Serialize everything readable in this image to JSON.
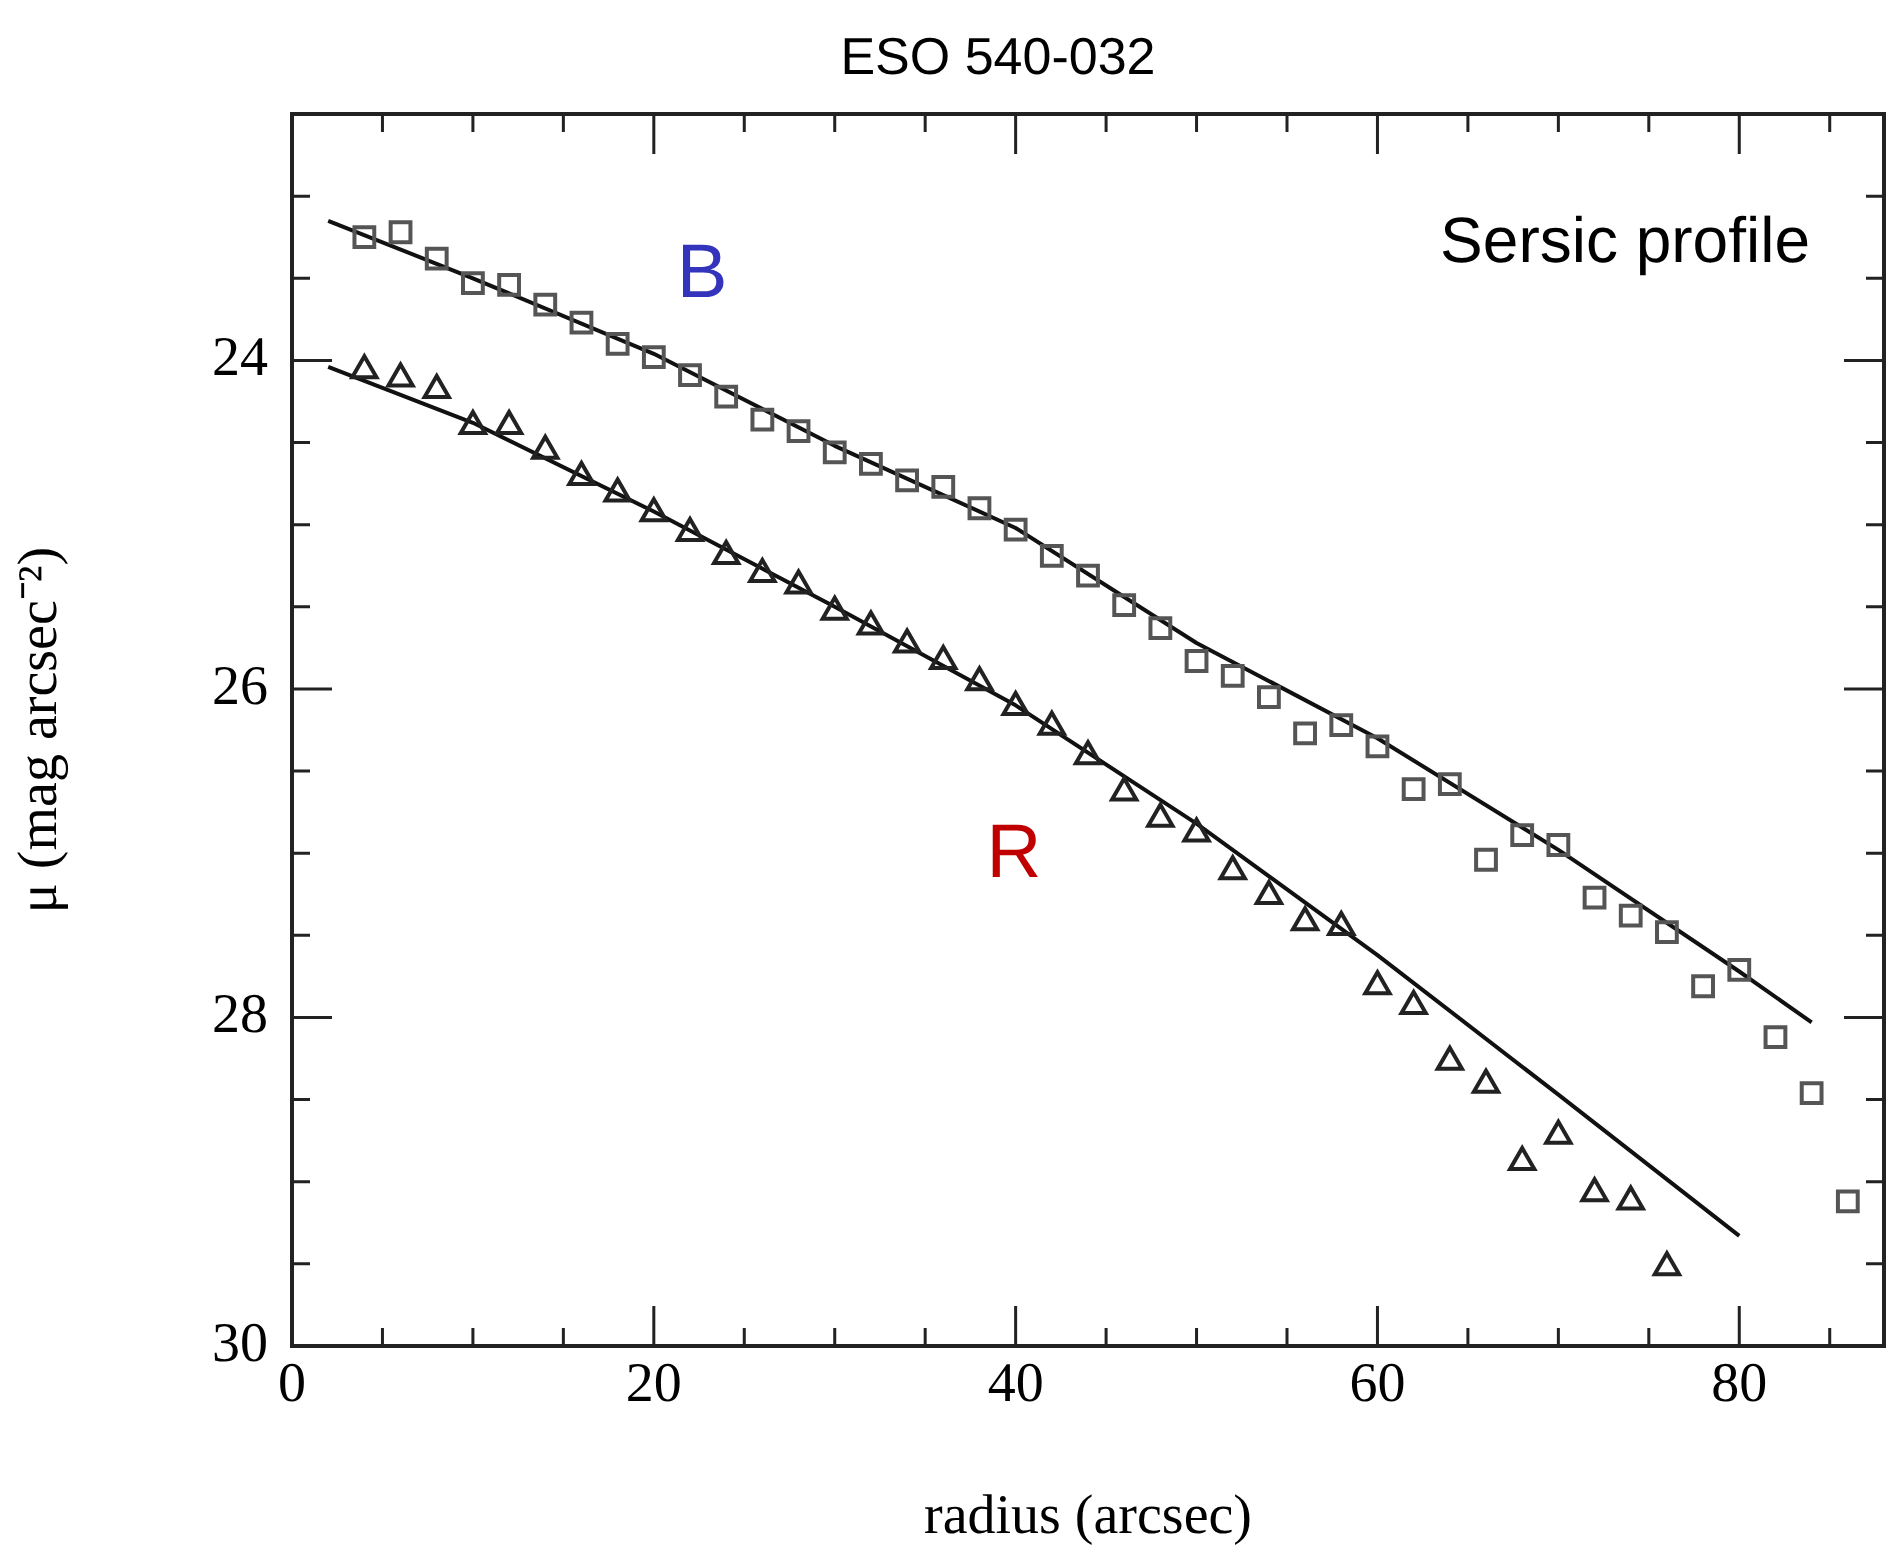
{
  "chart_data": {
    "type": "scatter",
    "title": "ESO 540-032",
    "xlabel": "radius (arcsec)",
    "ylabel": "μ (mag arcsec⁻²)",
    "xlim": [
      0,
      88
    ],
    "ylim": [
      30,
      22.5
    ],
    "xticks": [
      0,
      {
        "value": 5,
        "label": null
      },
      {
        "value": 10,
        "label": null
      },
      {
        "value": 15,
        "label": null
      },
      20,
      {
        "value": 25,
        "label": null
      },
      {
        "value": 30,
        "label": null
      },
      {
        "value": 35,
        "label": null
      },
      40,
      {
        "value": 45,
        "label": null
      },
      {
        "value": 50,
        "label": null
      },
      {
        "value": 55,
        "label": null
      },
      60,
      {
        "value": 65,
        "label": null
      },
      {
        "value": 70,
        "label": null
      },
      {
        "value": 75,
        "label": null
      },
      80,
      {
        "value": 85,
        "label": null
      }
    ],
    "yticks": [
      {
        "value": 22.5,
        "label": null
      },
      {
        "value": 23,
        "label": null
      },
      {
        "value": 23.5,
        "label": null
      },
      24,
      {
        "value": 24.5,
        "label": null
      },
      {
        "value": 25,
        "label": null
      },
      {
        "value": 25.5,
        "label": null
      },
      26,
      {
        "value": 26.5,
        "label": null
      },
      {
        "value": 27,
        "label": null
      },
      {
        "value": 27.5,
        "label": null
      },
      28,
      {
        "value": 28.5,
        "label": null
      },
      {
        "value": 29,
        "label": null
      },
      {
        "value": 29.5,
        "label": null
      },
      30
    ],
    "grid": false,
    "legend": false,
    "annotations": [
      "Sersic profile",
      "B",
      "R"
    ],
    "series": [
      {
        "marker": "square",
        "color": "#555555",
        "x": [
          4,
          6,
          8,
          10,
          12,
          14,
          16,
          18,
          20,
          22,
          24,
          26,
          28,
          30,
          32,
          34,
          36,
          38,
          40,
          42,
          44,
          46,
          48,
          50,
          52,
          54,
          56,
          58,
          60,
          62,
          64,
          66,
          68,
          70,
          72,
          74,
          76,
          78,
          80,
          82,
          84,
          86
        ],
        "values": [
          23.25,
          23.22,
          23.38,
          23.53,
          23.54,
          23.66,
          23.77,
          23.9,
          23.98,
          24.09,
          24.22,
          24.36,
          24.43,
          24.56,
          24.63,
          24.73,
          24.77,
          24.9,
          25.03,
          25.19,
          25.31,
          25.49,
          25.63,
          25.83,
          25.92,
          26.05,
          26.27,
          26.22,
          26.35,
          26.61,
          26.58,
          27.04,
          26.89,
          26.95,
          27.27,
          27.38,
          27.48,
          27.81,
          27.71,
          28.12,
          28.46,
          29.12
        ]
      },
      {
        "marker": "triangle",
        "color": "#222222",
        "x": [
          4,
          6,
          8,
          10,
          12,
          14,
          16,
          18,
          20,
          22,
          24,
          26,
          28,
          30,
          32,
          34,
          36,
          38,
          40,
          42,
          44,
          46,
          48,
          50,
          52,
          54,
          56,
          58,
          60,
          62,
          64,
          66,
          68,
          70,
          72,
          74,
          76
        ],
        "values": [
          24.06,
          24.11,
          24.18,
          24.4,
          24.4,
          24.55,
          24.71,
          24.81,
          24.93,
          25.05,
          25.19,
          25.3,
          25.37,
          25.53,
          25.62,
          25.73,
          25.83,
          25.96,
          26.11,
          26.23,
          26.41,
          26.63,
          26.79,
          26.88,
          27.11,
          27.26,
          27.42,
          27.45,
          27.81,
          27.93,
          28.27,
          28.41,
          28.88,
          28.72,
          29.07,
          29.12,
          29.52
        ]
      },
      {
        "type": "line",
        "marker": "none",
        "color": "#111111",
        "x": [
          2,
          10,
          20,
          30,
          40,
          50,
          60,
          70,
          80,
          84
        ],
        "values": [
          23.15,
          23.5,
          23.96,
          24.52,
          25.02,
          25.72,
          26.3,
          26.98,
          27.72,
          28.03
        ]
      },
      {
        "type": "line",
        "marker": "none",
        "color": "#111111",
        "x": [
          2,
          10,
          20,
          30,
          40,
          50,
          60,
          70,
          80
        ],
        "values": [
          24.04,
          24.38,
          24.92,
          25.5,
          26.1,
          26.82,
          27.62,
          28.47,
          29.33
        ]
      }
    ]
  }
}
